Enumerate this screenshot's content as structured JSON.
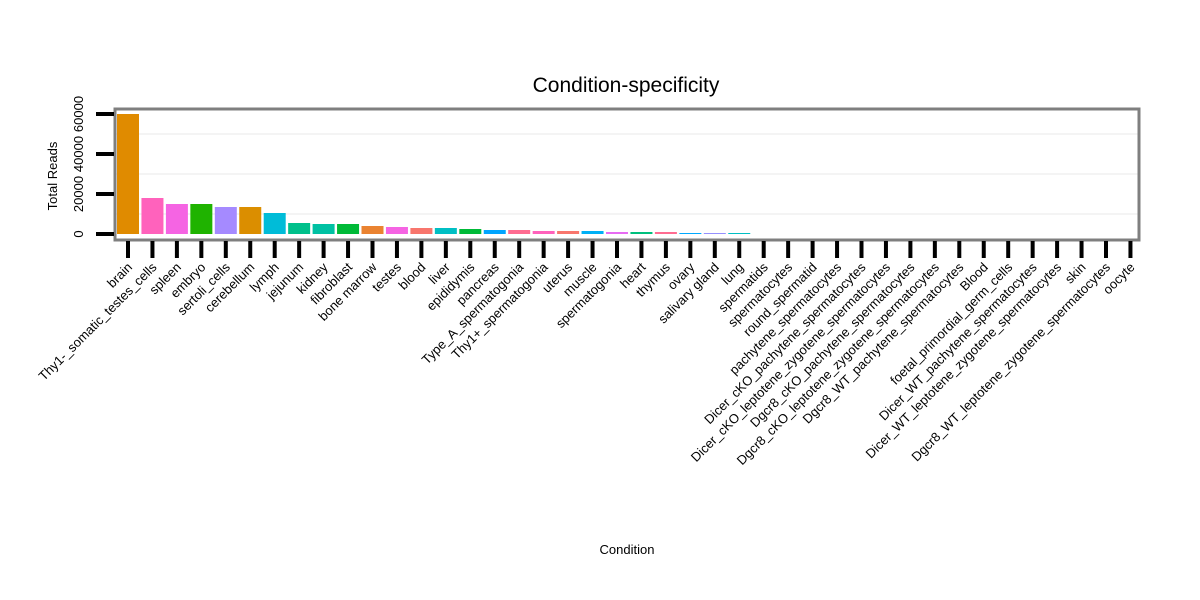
{
  "chart_data": {
    "type": "bar",
    "title": "Condition-specificity",
    "xlabel": "Condition",
    "ylabel": "Total Reads",
    "ylim": [
      0,
      63000
    ],
    "yticks": [
      0,
      20000,
      40000,
      60000
    ],
    "ytick_labels": [
      "0",
      "20000",
      "40000",
      "60000"
    ],
    "minor_gridlines": [
      10000,
      30000,
      50000
    ],
    "grid": true,
    "legend": "none",
    "categories": [
      "brain",
      "Thy1-_somatic_testes_cells",
      "spleen",
      "embryo",
      "sertoli_cells",
      "cerebellum",
      "lymph",
      "jejunum",
      "kidney",
      "fibroblast",
      "bone marrow",
      "testes",
      "blood",
      "liver",
      "epididymis",
      "pancreas",
      "Type_A_spermatogonia",
      "Thy1+_spermatogonia",
      "uterus",
      "muscle",
      "spermatogonia",
      "heart",
      "thymus",
      "ovary",
      "salivary gland",
      "lung",
      "spermatids",
      "spermatocytes",
      "round_spermatid",
      "pachytene_spermatocytes",
      "Dicer_cKO_pachytene_spermatocytes",
      "Dicer_cKO_leptotene_zygotene_spermatocytes",
      "Dgcr8_cKO_pachytene_spermatocytes",
      "Dgcr8_cKO_leptotene_zygotene_spermatocytes",
      "Dgcr8_WT_pachytene_spermatocytes",
      "Blood",
      "foetal_primordial_germ_cells",
      "Dicer_WT_pachytene_spermatocytes",
      "Dicer_WT_leptotene_zygotene_spermatocytes",
      "skin",
      "Dgcr8_WT_leptotene_zygotene_spermatocytes",
      "oocyte"
    ],
    "values": [
      60000,
      18000,
      15000,
      15000,
      13500,
      13500,
      10500,
      5500,
      5000,
      5000,
      4000,
      3500,
      3000,
      3000,
      2500,
      2000,
      2000,
      1500,
      1500,
      1500,
      1000,
      1000,
      1000,
      500,
      500,
      500,
      0,
      0,
      0,
      0,
      0,
      0,
      0,
      0,
      0,
      0,
      0,
      0,
      0,
      0,
      0,
      0
    ],
    "colors": [
      "#E08B00",
      "#FF62BC",
      "#F564E3",
      "#1FB300",
      "#A58AFF",
      "#DB8E00",
      "#00BCD8",
      "#00C08B",
      "#00C1A3",
      "#00BA38",
      "#EA8331",
      "#F564E3",
      "#F8766D",
      "#00BFC4",
      "#00BA38",
      "#00A5FF",
      "#FF6C91",
      "#FF62BC",
      "#F8766D",
      "#00B0F6",
      "#E76BF3",
      "#00BF7D",
      "#FF6C91",
      "#00A9FF",
      "#9590FF",
      "#00BFC4",
      "#F8766D",
      "#F8766D",
      "#F8766D",
      "#F8766D",
      "#F8766D",
      "#F8766D",
      "#F8766D",
      "#F8766D",
      "#F8766D",
      "#F8766D",
      "#F8766D",
      "#F8766D",
      "#F8766D",
      "#F8766D",
      "#F8766D",
      "#F8766D"
    ]
  }
}
